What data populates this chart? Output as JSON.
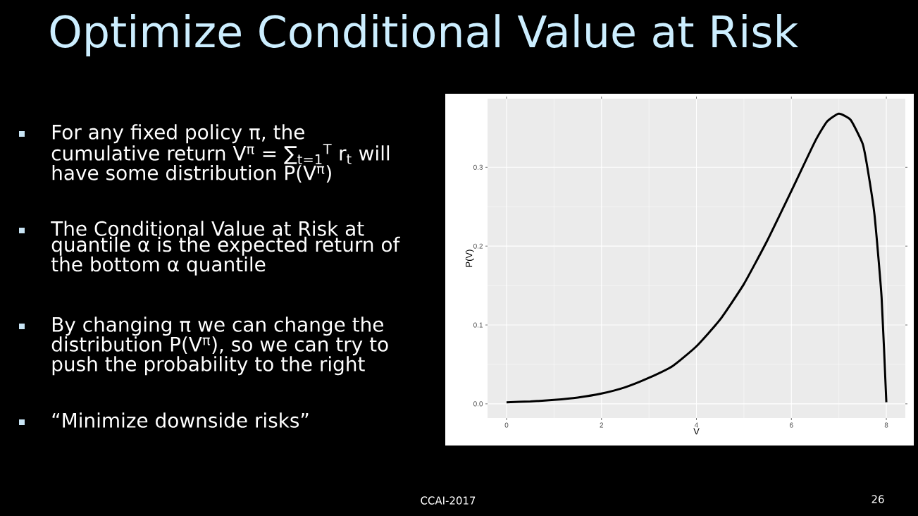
{
  "chart_data": {
    "type": "line",
    "title": "Optimize Conditional Value at Risk",
    "xlabel": "V",
    "ylabel": "P(V)",
    "x": [
      0,
      0.5,
      1,
      1.5,
      2,
      2.5,
      3,
      3.5,
      4,
      4.5,
      5,
      5.5,
      6,
      6.5,
      6.75,
      7,
      7.25,
      7.5,
      7.6,
      7.75,
      7.9,
      8
    ],
    "series": [
      {
        "color": "#000000",
        "values": [
          0.002,
          0.003,
          0.005,
          0.008,
          0.013,
          0.021,
          0.033,
          0.048,
          0.073,
          0.107,
          0.152,
          0.208,
          0.27,
          0.333,
          0.358,
          0.368,
          0.36,
          0.33,
          0.3,
          0.24,
          0.135,
          0.002
        ]
      }
    ],
    "xlim": [
      -0.4,
      8.4
    ],
    "ylim": [
      -0.018,
      0.387
    ],
    "xticks": [
      0,
      2,
      4,
      6,
      8
    ],
    "yticks": [
      {
        "value": 0,
        "label": "0.0"
      },
      {
        "value": 0.1,
        "label": "0.1"
      },
      {
        "value": 0.2,
        "label": "0.2"
      },
      {
        "value": 0.3,
        "label": "0.3"
      }
    ],
    "grid": true,
    "annotations": [
      "For any fixed policy π, the cumulative return V$^{π}$ = ∑$_{t=1}$$^{T}$ r$_{t}$ will have some distribution P(V$^{π}$)",
      "The Conditional Value at Risk at quantile α is the expected return of the bottom α quantile",
      "By changing π we can change the distribution P(V$^{π}$), so we can try to push the probability to the right",
      "“Minimize downside risks”",
      "CCAI-2017",
      "26"
    ]
  }
}
